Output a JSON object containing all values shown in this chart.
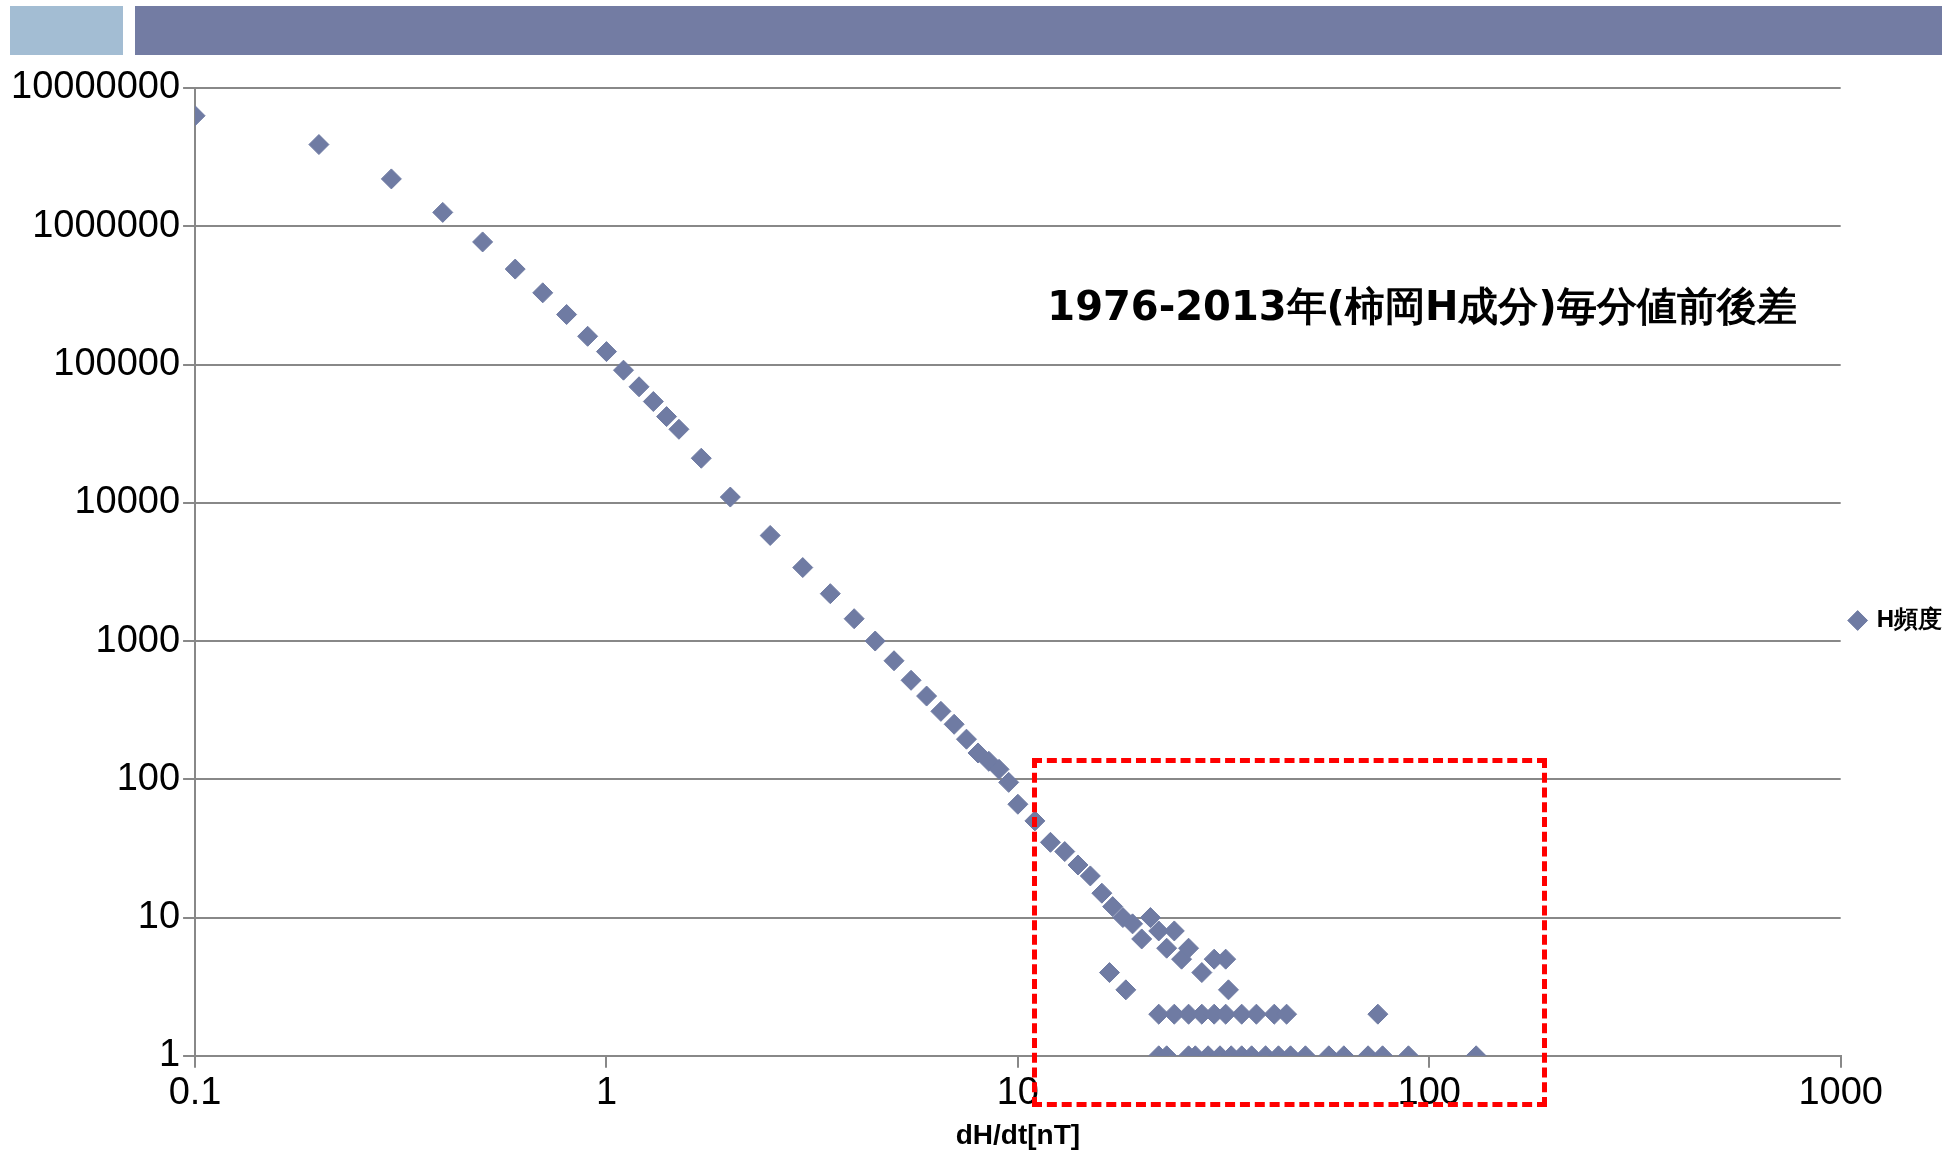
{
  "chart_data": {
    "type": "scatter",
    "xlabel": "dH/dt[nT]",
    "annotations": [
      "1976-2013年(柿岡H成分)毎分値前後差"
    ],
    "x": [
      0.1,
      0.2,
      0.3,
      0.4,
      0.5,
      0.6,
      0.7,
      0.8,
      0.9,
      1,
      1.1,
      1.2,
      1.3,
      1.4,
      1.5,
      1.7,
      2,
      2.5,
      3,
      3.5,
      4,
      4.5,
      5,
      5.5,
      6,
      6.5,
      7,
      7.5,
      8,
      8.5,
      9,
      9.5,
      10,
      11,
      12,
      13,
      14,
      15,
      16,
      16.7,
      17,
      18,
      18.3,
      19,
      20,
      21,
      22,
      23,
      24,
      25,
      26,
      28,
      30,
      32,
      32.5,
      22,
      24,
      26,
      28,
      30,
      32,
      35,
      38,
      42,
      45,
      75,
      22,
      23,
      26,
      27,
      29,
      31,
      33,
      35,
      37,
      40,
      43,
      46,
      50,
      57,
      62,
      71,
      77,
      89,
      130
    ],
    "series": [
      {
        "name": "H頻度",
        "color": "#6f7ba3",
        "values": [
          6300000,
          3900000,
          2200000,
          1260000,
          770000,
          490000,
          330000,
          230000,
          160000,
          124000,
          91000,
          69000,
          54000,
          42000,
          34000,
          21000,
          11000,
          5800,
          3400,
          2200,
          1450,
          1000,
          720,
          520,
          400,
          310,
          250,
          195,
          155,
          135,
          118,
          95,
          66,
          50,
          35,
          30,
          24,
          20,
          15,
          4,
          12,
          10,
          3,
          9,
          7,
          10,
          8,
          6,
          8,
          5,
          6,
          4,
          5,
          5,
          3,
          2,
          2,
          2,
          2,
          2,
          2,
          2,
          2,
          2,
          2,
          2,
          1,
          1,
          1,
          1,
          1,
          1,
          1,
          1,
          1,
          1,
          1,
          1,
          1,
          1,
          1,
          1,
          1,
          1,
          1
        ]
      }
    ],
    "xlim": [
      0.1,
      1000
    ],
    "ylim": [
      1,
      10000000
    ],
    "xticks": [
      0.1,
      1,
      10,
      100,
      1000
    ],
    "yticks": [
      1,
      10,
      100,
      1000,
      10000,
      100000,
      1000000,
      10000000
    ],
    "log": "xy",
    "grid": "y",
    "legend": "right",
    "marker": "diamond"
  }
}
